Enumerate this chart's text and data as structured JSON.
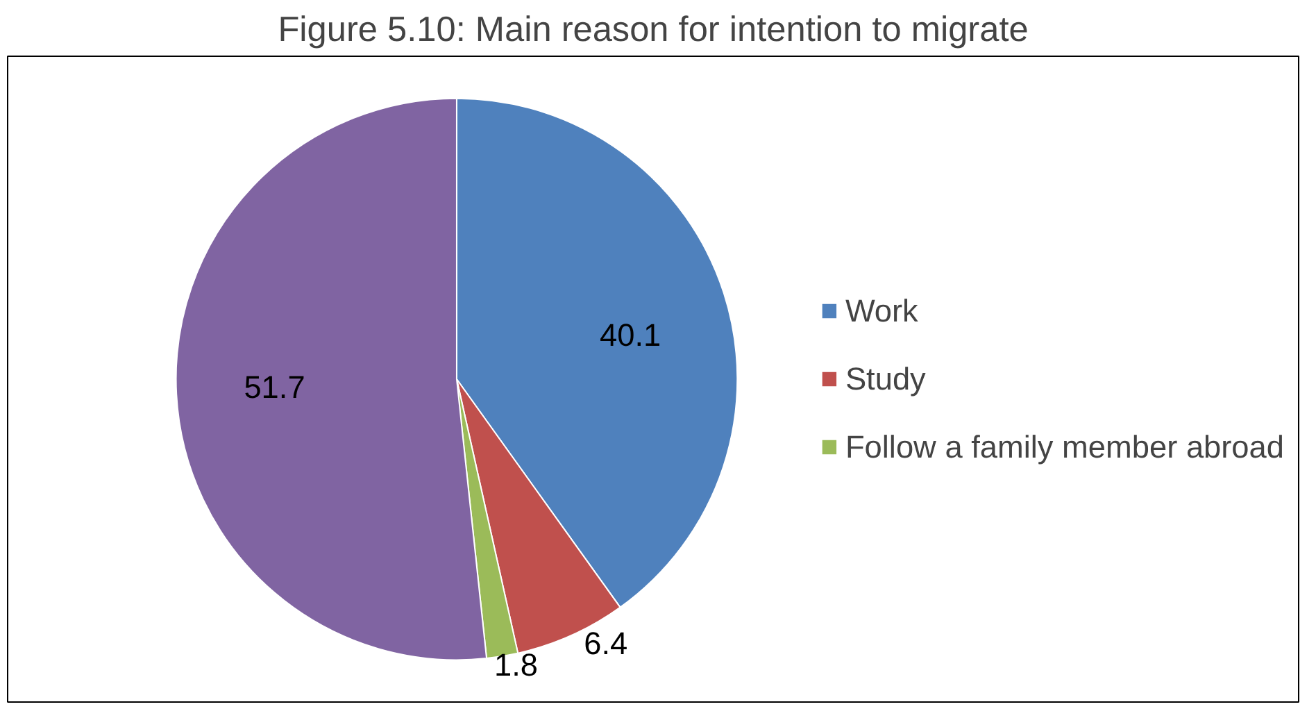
{
  "chart_data": {
    "type": "pie",
    "title": "Figure 5.10: Main reason for intention to migrate",
    "categories": [
      "Work",
      "Study",
      "Follow a family member abroad",
      null
    ],
    "values": [
      40.1,
      6.4,
      1.8,
      51.7
    ],
    "colors": [
      "#4f81bd",
      "#c0504d",
      "#9bbb59",
      "#8064a2"
    ],
    "data_labels": true,
    "legend": "right"
  }
}
